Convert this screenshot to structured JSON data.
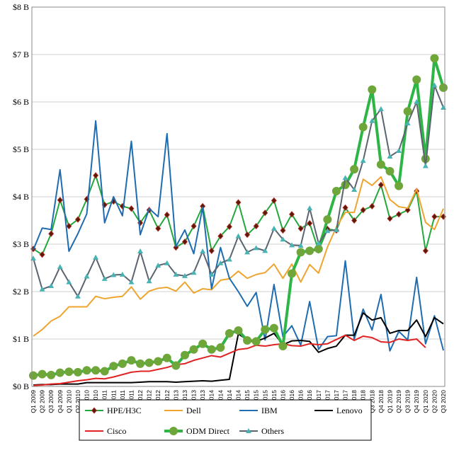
{
  "chart_data": {
    "type": "line",
    "categories": [
      "Q1 2009",
      "Q2 2009",
      "Q3 2009",
      "Q4 2009",
      "Q1 2010",
      "Q2 2010",
      "Q3 2010",
      "Q4 2010",
      "Q1 2011",
      "Q2 2011",
      "Q3 2011",
      "Q4 2011",
      "Q1 2012",
      "Q2 2012",
      "Q3 2012",
      "Q4 2012",
      "Q1 2013",
      "Q2 2013",
      "Q3 2013",
      "Q4 2013",
      "Q1 2014",
      "Q2 2014",
      "Q3 2014",
      "Q4 2014",
      "Q1 2015",
      "Q2 2015",
      "Q3 2015",
      "Q4 2015",
      "Q1 2016",
      "Q2 2016",
      "Q3 2016",
      "Q4 2016",
      "Q1 2017",
      "Q2 2017",
      "Q3 2017",
      "Q4 2017",
      "Q1 2018",
      "Q2 2018",
      "Q3 2018",
      "Q4 2018",
      "Q1 2019",
      "Q2 2019",
      "Q3 2019",
      "Q4 2019",
      "Q1 2020",
      "Q2 2020",
      "Q3 2020"
    ],
    "ylim": [
      0,
      8
    ],
    "yticks": [
      {
        "value": 0,
        "label": "$0 B"
      },
      {
        "value": 1,
        "label": "$1 B"
      },
      {
        "value": 2,
        "label": "$2 B"
      },
      {
        "value": 3,
        "label": "$3 B"
      },
      {
        "value": 4,
        "label": "$4 B"
      },
      {
        "value": 5,
        "label": "$5 B"
      },
      {
        "value": 6,
        "label": "$6 B"
      },
      {
        "value": 7,
        "label": "$7 B"
      },
      {
        "value": 8,
        "label": "$8 B"
      }
    ],
    "grid": true,
    "legend": "bottom",
    "series": [
      {
        "name": "HPE/H3C",
        "color": "#22a83c",
        "marker": "diamond",
        "marker_color": "#5a1a08",
        "values": [
          2.9,
          2.78,
          3.22,
          3.93,
          3.38,
          3.52,
          3.95,
          4.45,
          3.83,
          3.9,
          3.8,
          3.75,
          3.45,
          3.72,
          3.33,
          3.62,
          2.93,
          3.05,
          3.38,
          3.8,
          2.86,
          3.17,
          3.37,
          3.88,
          3.2,
          3.38,
          3.66,
          3.92,
          3.29,
          3.63,
          3.33,
          3.44,
          2.87,
          3.32,
          3.29,
          3.77,
          3.5,
          3.72,
          3.8,
          4.25,
          3.54,
          3.63,
          3.72,
          4.12,
          2.86,
          3.58,
          3.58
        ]
      },
      {
        "name": "Dell",
        "color": "#eea52f",
        "values": [
          1.06,
          1.2,
          1.38,
          1.48,
          1.68,
          1.68,
          1.68,
          1.9,
          1.85,
          1.88,
          1.9,
          2.1,
          1.84,
          2.01,
          2.07,
          2.09,
          2.01,
          2.2,
          1.97,
          2.06,
          2.04,
          2.24,
          2.27,
          2.43,
          2.28,
          2.36,
          2.4,
          2.58,
          2.28,
          2.58,
          2.2,
          2.57,
          2.39,
          2.94,
          3.36,
          3.67,
          3.67,
          4.37,
          4.24,
          4.42,
          3.94,
          3.79,
          3.76,
          4.16,
          3.46,
          3.31,
          3.75
        ]
      },
      {
        "name": "IBM",
        "color": "#1f6cb0",
        "values": [
          2.88,
          3.34,
          3.31,
          4.57,
          2.85,
          3.22,
          3.64,
          5.6,
          3.45,
          4.0,
          3.6,
          5.17,
          3.2,
          3.75,
          3.58,
          5.33,
          2.95,
          3.3,
          2.8,
          3.78,
          2.06,
          2.93,
          2.28,
          2.0,
          1.69,
          1.98,
          0.98,
          2.15,
          1.05,
          1.28,
          0.87,
          1.79,
          0.78,
          1.05,
          1.07,
          2.65,
          1.0,
          1.63,
          1.19,
          1.94,
          0.75,
          1.16,
          0.98,
          2.3,
          0.9,
          1.49,
          0.76
        ]
      },
      {
        "name": "Lenovo",
        "color": "#000000",
        "values": [
          0.03,
          0.04,
          0.04,
          0.05,
          0.05,
          0.05,
          0.08,
          0.08,
          0.08,
          0.08,
          0.08,
          0.08,
          0.09,
          0.1,
          0.1,
          0.1,
          0.09,
          0.1,
          0.11,
          0.12,
          0.11,
          0.13,
          0.15,
          1.11,
          0.98,
          0.95,
          1.02,
          1.12,
          0.88,
          0.96,
          0.97,
          0.95,
          0.72,
          0.8,
          0.85,
          1.08,
          1.08,
          1.55,
          1.4,
          1.45,
          1.12,
          1.18,
          1.18,
          1.4,
          1.05,
          1.45,
          1.32
        ]
      },
      {
        "name": "Cisco",
        "color": "#e02222",
        "values": [
          0.02,
          0.03,
          0.05,
          0.06,
          0.09,
          0.12,
          0.14,
          0.17,
          0.16,
          0.2,
          0.25,
          0.3,
          0.32,
          0.32,
          0.36,
          0.4,
          0.46,
          0.48,
          0.55,
          0.6,
          0.65,
          0.62,
          0.7,
          0.78,
          0.8,
          0.87,
          0.85,
          0.88,
          0.9,
          0.86,
          0.85,
          0.9,
          0.88,
          0.9,
          0.99,
          1.08,
          0.97,
          1.06,
          1.03,
          0.94,
          0.93,
          1.0,
          0.97,
          1.0,
          0.82,
          null,
          null
        ]
      },
      {
        "name": "ODM Direct",
        "color": "#2db545",
        "line_width": 4,
        "marker": "circle",
        "marker_color": "#6fa63a",
        "values": [
          0.23,
          0.26,
          0.24,
          0.29,
          0.31,
          0.3,
          0.34,
          0.34,
          0.32,
          0.43,
          0.48,
          0.55,
          0.48,
          0.5,
          0.53,
          0.6,
          0.44,
          0.66,
          0.78,
          0.9,
          0.78,
          0.82,
          1.12,
          1.18,
          0.97,
          0.95,
          1.2,
          1.23,
          0.85,
          2.38,
          2.83,
          2.86,
          2.9,
          3.52,
          4.12,
          4.25,
          4.58,
          5.47,
          6.26,
          4.68,
          4.54,
          4.23,
          5.8,
          6.47,
          4.8,
          6.92,
          6.3
        ]
      },
      {
        "name": "Others",
        "color": "#5c6470",
        "marker": "triangle",
        "marker_color": "#49b3b3",
        "values": [
          2.7,
          2.05,
          2.12,
          2.52,
          2.2,
          1.9,
          2.32,
          2.72,
          2.27,
          2.35,
          2.36,
          2.2,
          2.85,
          2.22,
          2.55,
          2.6,
          2.36,
          2.33,
          2.4,
          2.85,
          2.36,
          2.6,
          2.68,
          3.17,
          2.83,
          2.92,
          2.86,
          3.33,
          3.1,
          2.98,
          2.97,
          3.76,
          3.02,
          3.28,
          3.3,
          4.4,
          4.15,
          4.76,
          5.6,
          5.85,
          4.85,
          4.97,
          5.55,
          6.0,
          4.65,
          6.35,
          5.88
        ]
      }
    ]
  }
}
